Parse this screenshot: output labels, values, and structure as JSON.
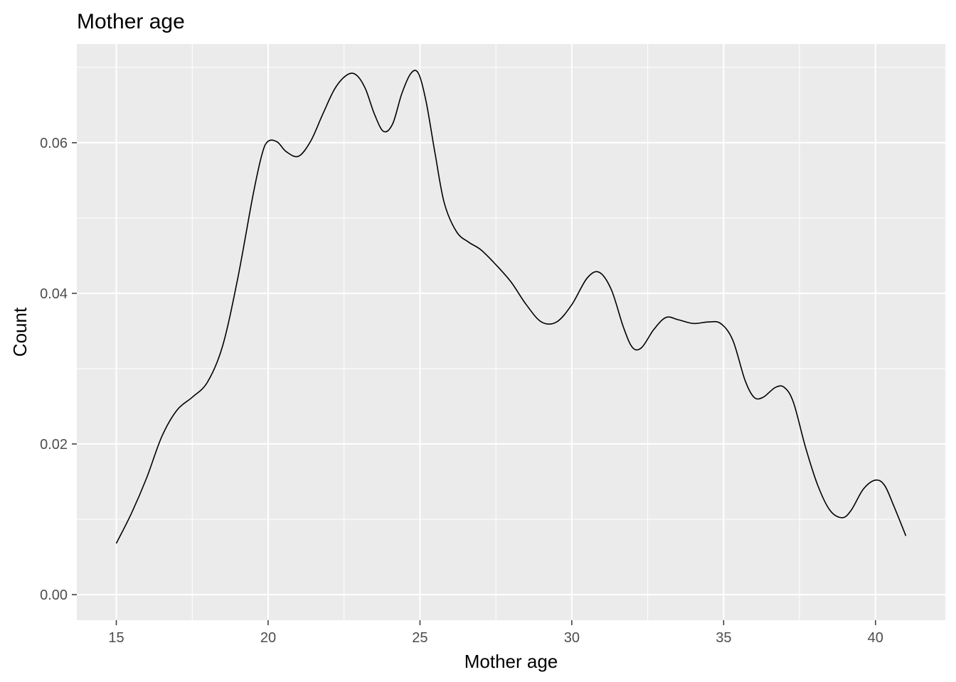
{
  "chart_data": {
    "type": "line",
    "title": "Mother age",
    "xlabel": "Mother age",
    "ylabel": "Count",
    "xlim": [
      13.7,
      42.3
    ],
    "ylim": [
      -0.0034,
      0.0731
    ],
    "x_ticks": [
      15,
      20,
      25,
      30,
      35,
      40
    ],
    "y_ticks": [
      0.0,
      0.02,
      0.04,
      0.06
    ],
    "x_tick_labels": [
      "15",
      "20",
      "25",
      "30",
      "35",
      "40"
    ],
    "y_tick_labels": [
      "0.00",
      "0.02",
      "0.04",
      "0.06"
    ],
    "grid": true,
    "background": "#ebebeb",
    "grid_color": "#ffffff",
    "line_color": "#000000",
    "series": [
      {
        "x": [
          15.0,
          15.5,
          16.0,
          16.5,
          17.0,
          17.5,
          18.0,
          18.5,
          19.0,
          19.5,
          19.8,
          20.0,
          20.3,
          20.6,
          21.0,
          21.4,
          21.8,
          22.2,
          22.6,
          22.9,
          23.2,
          23.5,
          23.8,
          24.1,
          24.4,
          24.7,
          24.95,
          25.2,
          25.5,
          25.8,
          26.2,
          26.6,
          27.0,
          27.5,
          28.0,
          28.5,
          29.0,
          29.5,
          30.0,
          30.5,
          30.9,
          31.3,
          31.7,
          32.0,
          32.3,
          32.7,
          33.1,
          33.5,
          34.0,
          34.5,
          34.9,
          35.3,
          35.7,
          36.0,
          36.3,
          36.7,
          37.0,
          37.3,
          37.7,
          38.1,
          38.5,
          38.9,
          39.2,
          39.6,
          40.0,
          40.3,
          40.6,
          41.0
        ],
        "y": [
          0.0068,
          0.0108,
          0.0155,
          0.021,
          0.0245,
          0.0262,
          0.0282,
          0.033,
          0.042,
          0.053,
          0.0585,
          0.0602,
          0.0601,
          0.0588,
          0.0582,
          0.0602,
          0.0638,
          0.0672,
          0.069,
          0.069,
          0.0672,
          0.0638,
          0.0615,
          0.0625,
          0.0665,
          0.0692,
          0.0692,
          0.0655,
          0.0585,
          0.052,
          0.0482,
          0.0468,
          0.0458,
          0.0438,
          0.0415,
          0.0385,
          0.0362,
          0.0362,
          0.0385,
          0.042,
          0.0428,
          0.0405,
          0.0355,
          0.0328,
          0.0328,
          0.0352,
          0.0368,
          0.0365,
          0.036,
          0.0362,
          0.036,
          0.0338,
          0.0285,
          0.0262,
          0.0262,
          0.0275,
          0.0275,
          0.0255,
          0.0195,
          0.0145,
          0.0112,
          0.0102,
          0.0112,
          0.014,
          0.0152,
          0.0145,
          0.0118,
          0.0078
        ]
      }
    ]
  }
}
